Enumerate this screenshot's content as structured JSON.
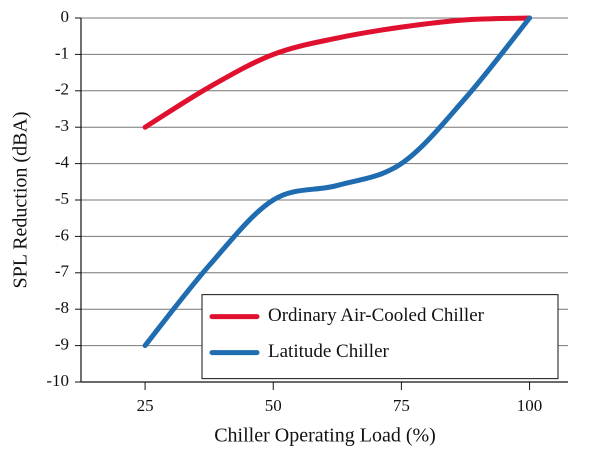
{
  "chart_data": {
    "type": "line",
    "x_label": "Chiller Operating Load (%)",
    "y_label": "SPL Reduction (dBA)",
    "x": [
      25,
      37.5,
      50,
      62.5,
      75,
      87.5,
      100
    ],
    "series": [
      {
        "name": "Ordinary Air-Cooled Chiller",
        "color": "#e0102f",
        "values": [
          -3,
          -1.9,
          -1,
          -0.55,
          -0.25,
          -0.05,
          0
        ]
      },
      {
        "name": "Latitude Chiller",
        "color": "#1f6cb0",
        "values": [
          -9,
          -6.8,
          -5,
          -4.6,
          -4,
          -2.2,
          0
        ]
      }
    ],
    "xlim": [
      12.5,
      107.5
    ],
    "xticks": [
      25,
      50,
      75,
      100
    ],
    "ylim": [
      -10,
      0
    ],
    "yticks": [
      0,
      -1,
      -2,
      -3,
      -4,
      -5,
      -6,
      -7,
      -8,
      -9,
      -10
    ],
    "grid": true,
    "legend": "lower right"
  }
}
